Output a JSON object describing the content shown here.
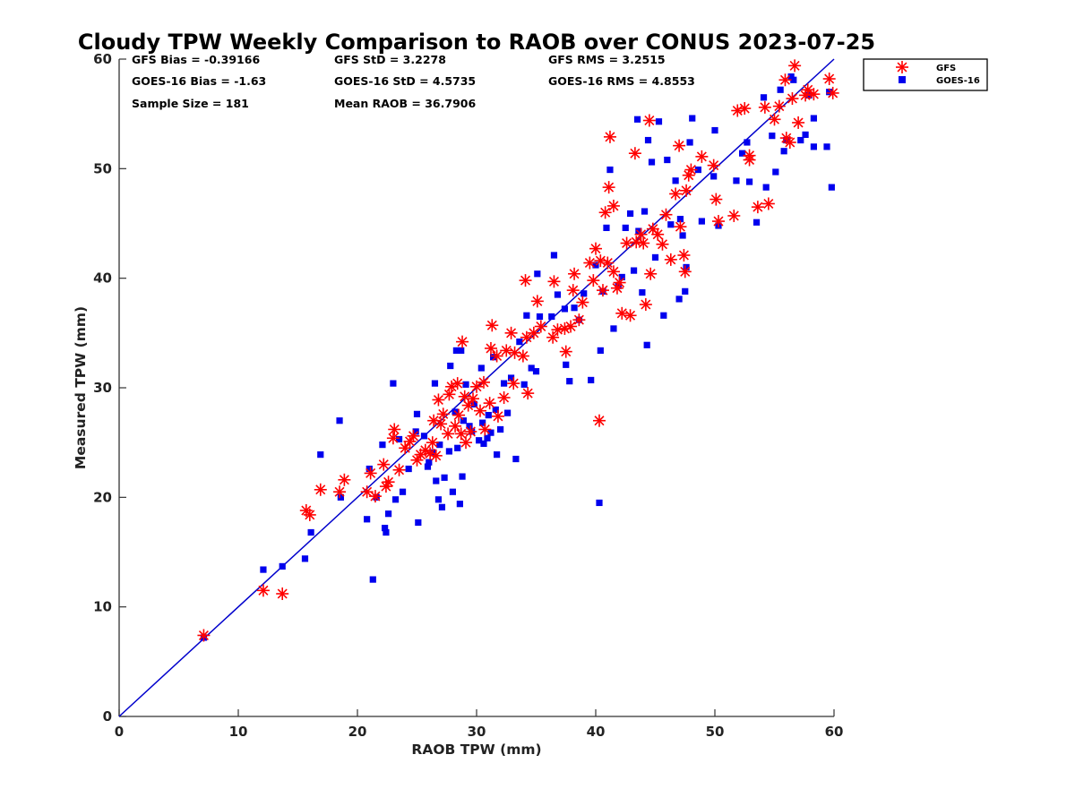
{
  "chart_data": {
    "type": "scatter",
    "title": "Cloudy TPW Weekly Comparison to RAOB over CONUS 2023-07-25",
    "xlabel": "RAOB TPW (mm)",
    "ylabel": "Measured TPW (mm)",
    "xlim": [
      0,
      60
    ],
    "ylim": [
      0,
      60
    ],
    "xticks": [
      0,
      10,
      20,
      30,
      40,
      50,
      60
    ],
    "yticks": [
      0,
      10,
      20,
      30,
      40,
      50,
      60
    ],
    "grid": false,
    "legend_position": "outside top-right",
    "reference_line": {
      "name": "1:1 line",
      "from": [
        0,
        0
      ],
      "to": [
        60,
        60
      ],
      "color": "#0000cc"
    },
    "stats": [
      [
        "GFS Bias = -0.39166",
        "GFS StD = 3.2278",
        "GFS RMS = 3.2515"
      ],
      [
        "GOES-16 Bias = -1.63",
        "GOES-16 StD = 4.5735",
        "GOES-16 RMS = 4.8553"
      ],
      [
        "Sample Size = 181",
        "Mean RAOB = 36.7906",
        ""
      ]
    ],
    "series": [
      {
        "name": "GFS",
        "marker": "asterisk",
        "color": "#ff0000",
        "points": [
          [
            7.1,
            7.4
          ],
          [
            12.1,
            11.5
          ],
          [
            13.7,
            11.2
          ],
          [
            15.7,
            18.8
          ],
          [
            16.0,
            18.4
          ],
          [
            16.9,
            20.7
          ],
          [
            18.5,
            20.5
          ],
          [
            18.9,
            21.6
          ],
          [
            20.8,
            20.5
          ],
          [
            21.1,
            22.2
          ],
          [
            21.5,
            20.1
          ],
          [
            22.2,
            23.0
          ],
          [
            22.4,
            21.0
          ],
          [
            22.6,
            21.4
          ],
          [
            23.0,
            25.4
          ],
          [
            23.1,
            26.2
          ],
          [
            23.5,
            22.5
          ],
          [
            24.0,
            24.5
          ],
          [
            24.4,
            25.1
          ],
          [
            24.7,
            25.6
          ],
          [
            25.0,
            23.4
          ],
          [
            25.3,
            23.9
          ],
          [
            25.7,
            24.3
          ],
          [
            26.1,
            24.0
          ],
          [
            26.3,
            25.0
          ],
          [
            26.4,
            27.0
          ],
          [
            26.6,
            23.8
          ],
          [
            26.8,
            28.9
          ],
          [
            27.0,
            26.7
          ],
          [
            27.2,
            27.6
          ],
          [
            27.6,
            25.8
          ],
          [
            27.7,
            29.4
          ],
          [
            27.9,
            30.1
          ],
          [
            28.2,
            26.5
          ],
          [
            28.4,
            30.4
          ],
          [
            28.5,
            27.5
          ],
          [
            28.7,
            25.8
          ],
          [
            28.8,
            34.2
          ],
          [
            29.0,
            29.2
          ],
          [
            29.1,
            25.0
          ],
          [
            29.3,
            28.4
          ],
          [
            29.5,
            26.0
          ],
          [
            29.7,
            29.0
          ],
          [
            30.0,
            30.1
          ],
          [
            30.3,
            27.9
          ],
          [
            30.6,
            30.5
          ],
          [
            30.7,
            26.2
          ],
          [
            31.1,
            28.6
          ],
          [
            31.2,
            33.6
          ],
          [
            31.3,
            35.7
          ],
          [
            31.7,
            32.9
          ],
          [
            31.8,
            27.4
          ],
          [
            32.3,
            29.1
          ],
          [
            32.5,
            33.4
          ],
          [
            32.9,
            35.0
          ],
          [
            33.1,
            30.4
          ],
          [
            33.2,
            33.2
          ],
          [
            33.9,
            32.9
          ],
          [
            34.2,
            34.6
          ],
          [
            34.3,
            29.5
          ],
          [
            34.1,
            39.8
          ],
          [
            34.8,
            35.0
          ],
          [
            35.1,
            37.9
          ],
          [
            35.4,
            35.6
          ],
          [
            36.4,
            34.6
          ],
          [
            36.5,
            39.7
          ],
          [
            36.8,
            35.3
          ],
          [
            37.4,
            35.4
          ],
          [
            37.5,
            33.3
          ],
          [
            37.9,
            35.6
          ],
          [
            38.1,
            38.9
          ],
          [
            38.2,
            40.4
          ],
          [
            38.6,
            36.2
          ],
          [
            38.9,
            37.8
          ],
          [
            39.5,
            41.4
          ],
          [
            39.8,
            39.8
          ],
          [
            40.0,
            42.7
          ],
          [
            40.3,
            27.0
          ],
          [
            40.4,
            41.6
          ],
          [
            40.6,
            38.9
          ],
          [
            40.8,
            46.0
          ],
          [
            41.0,
            41.4
          ],
          [
            41.1,
            48.3
          ],
          [
            41.2,
            52.9
          ],
          [
            41.5,
            46.6
          ],
          [
            41.5,
            40.6
          ],
          [
            41.8,
            39.1
          ],
          [
            42.0,
            39.6
          ],
          [
            42.2,
            36.8
          ],
          [
            42.6,
            43.2
          ],
          [
            42.9,
            36.6
          ],
          [
            43.3,
            51.4
          ],
          [
            43.4,
            43.3
          ],
          [
            43.8,
            44.0
          ],
          [
            44.0,
            43.2
          ],
          [
            44.2,
            37.6
          ],
          [
            44.5,
            54.4
          ],
          [
            44.6,
            40.4
          ],
          [
            44.8,
            44.5
          ],
          [
            45.2,
            44.0
          ],
          [
            45.6,
            43.1
          ],
          [
            45.9,
            45.8
          ],
          [
            46.3,
            41.7
          ],
          [
            46.7,
            47.7
          ],
          [
            47.0,
            52.1
          ],
          [
            47.1,
            44.7
          ],
          [
            47.4,
            42.1
          ],
          [
            47.5,
            40.6
          ],
          [
            47.6,
            48.0
          ],
          [
            47.8,
            49.4
          ],
          [
            48.0,
            49.9
          ],
          [
            48.9,
            51.1
          ],
          [
            49.9,
            50.3
          ],
          [
            50.1,
            47.2
          ],
          [
            50.3,
            45.2
          ],
          [
            51.6,
            45.7
          ],
          [
            51.9,
            55.3
          ],
          [
            52.5,
            55.5
          ],
          [
            52.9,
            51.2
          ],
          [
            52.9,
            50.8
          ],
          [
            53.6,
            46.5
          ],
          [
            54.2,
            55.6
          ],
          [
            54.5,
            46.8
          ],
          [
            55.0,
            54.5
          ],
          [
            55.4,
            55.7
          ],
          [
            55.9,
            58.1
          ],
          [
            56.0,
            52.8
          ],
          [
            56.3,
            52.4
          ],
          [
            56.5,
            56.4
          ],
          [
            56.7,
            59.4
          ],
          [
            57.0,
            54.2
          ],
          [
            57.6,
            56.7
          ],
          [
            57.8,
            57.2
          ],
          [
            58.3,
            56.8
          ],
          [
            59.6,
            58.2
          ],
          [
            59.9,
            56.9
          ]
        ]
      },
      {
        "name": "GOES-16",
        "marker": "square",
        "color": "#0000ee",
        "points": [
          [
            7.1,
            7.2
          ],
          [
            12.1,
            13.4
          ],
          [
            13.7,
            13.7
          ],
          [
            15.6,
            14.4
          ],
          [
            16.1,
            16.8
          ],
          [
            16.9,
            23.9
          ],
          [
            18.5,
            27.0
          ],
          [
            18.6,
            20.0
          ],
          [
            20.8,
            18.0
          ],
          [
            21.0,
            22.6
          ],
          [
            21.3,
            12.5
          ],
          [
            21.6,
            20.0
          ],
          [
            22.1,
            24.8
          ],
          [
            22.3,
            17.2
          ],
          [
            22.4,
            16.8
          ],
          [
            22.6,
            18.5
          ],
          [
            23.0,
            30.4
          ],
          [
            23.2,
            19.8
          ],
          [
            23.5,
            25.3
          ],
          [
            23.8,
            20.5
          ],
          [
            24.3,
            22.6
          ],
          [
            24.9,
            26.0
          ],
          [
            25.0,
            27.6
          ],
          [
            25.1,
            17.7
          ],
          [
            25.6,
            25.6
          ],
          [
            25.9,
            22.8
          ],
          [
            26.0,
            23.2
          ],
          [
            26.3,
            24.1
          ],
          [
            26.5,
            30.4
          ],
          [
            26.6,
            21.5
          ],
          [
            26.8,
            19.8
          ],
          [
            26.9,
            24.8
          ],
          [
            27.1,
            19.1
          ],
          [
            27.3,
            21.8
          ],
          [
            27.7,
            24.2
          ],
          [
            27.8,
            32.0
          ],
          [
            28.0,
            20.5
          ],
          [
            28.2,
            27.8
          ],
          [
            28.3,
            33.4
          ],
          [
            28.4,
            24.5
          ],
          [
            28.6,
            19.4
          ],
          [
            28.7,
            33.4
          ],
          [
            28.8,
            21.9
          ],
          [
            28.9,
            27.0
          ],
          [
            29.1,
            30.3
          ],
          [
            29.4,
            26.5
          ],
          [
            29.6,
            26.0
          ],
          [
            29.8,
            28.5
          ],
          [
            30.2,
            25.2
          ],
          [
            30.4,
            31.8
          ],
          [
            30.5,
            26.8
          ],
          [
            30.6,
            24.9
          ],
          [
            30.9,
            25.4
          ],
          [
            31.0,
            27.5
          ],
          [
            31.2,
            25.9
          ],
          [
            31.4,
            32.8
          ],
          [
            31.6,
            28.0
          ],
          [
            31.7,
            23.9
          ],
          [
            32.0,
            26.2
          ],
          [
            32.3,
            30.4
          ],
          [
            32.6,
            27.7
          ],
          [
            32.9,
            30.9
          ],
          [
            33.3,
            23.5
          ],
          [
            33.6,
            34.2
          ],
          [
            34.0,
            30.3
          ],
          [
            34.2,
            36.6
          ],
          [
            34.6,
            31.8
          ],
          [
            35.0,
            31.5
          ],
          [
            35.1,
            40.4
          ],
          [
            35.3,
            36.5
          ],
          [
            36.3,
            36.5
          ],
          [
            36.5,
            42.1
          ],
          [
            36.8,
            38.5
          ],
          [
            37.4,
            37.2
          ],
          [
            37.5,
            32.1
          ],
          [
            37.8,
            30.6
          ],
          [
            38.2,
            37.3
          ],
          [
            38.6,
            36.2
          ],
          [
            39.0,
            38.6
          ],
          [
            39.6,
            30.7
          ],
          [
            40.0,
            41.2
          ],
          [
            40.3,
            19.5
          ],
          [
            40.4,
            33.4
          ],
          [
            40.6,
            38.8
          ],
          [
            40.9,
            44.6
          ],
          [
            41.2,
            49.9
          ],
          [
            41.5,
            35.4
          ],
          [
            41.9,
            39.3
          ],
          [
            42.2,
            40.1
          ],
          [
            42.5,
            44.6
          ],
          [
            42.9,
            45.9
          ],
          [
            43.2,
            40.7
          ],
          [
            43.5,
            54.5
          ],
          [
            43.6,
            44.3
          ],
          [
            43.9,
            38.7
          ],
          [
            44.1,
            46.1
          ],
          [
            44.3,
            33.9
          ],
          [
            44.4,
            52.6
          ],
          [
            44.7,
            50.6
          ],
          [
            45.0,
            41.9
          ],
          [
            45.3,
            54.3
          ],
          [
            45.7,
            36.6
          ],
          [
            46.0,
            50.8
          ],
          [
            46.3,
            44.9
          ],
          [
            46.7,
            48.9
          ],
          [
            47.0,
            38.1
          ],
          [
            47.1,
            45.4
          ],
          [
            47.3,
            43.9
          ],
          [
            47.5,
            38.8
          ],
          [
            47.6,
            41.0
          ],
          [
            47.9,
            52.4
          ],
          [
            48.1,
            54.6
          ],
          [
            48.6,
            49.9
          ],
          [
            48.9,
            45.2
          ],
          [
            49.9,
            49.3
          ],
          [
            50.0,
            53.5
          ],
          [
            50.3,
            44.8
          ],
          [
            51.8,
            48.9
          ],
          [
            52.3,
            51.4
          ],
          [
            52.7,
            52.4
          ],
          [
            52.9,
            48.8
          ],
          [
            53.5,
            45.1
          ],
          [
            54.1,
            56.5
          ],
          [
            54.3,
            48.3
          ],
          [
            54.8,
            53.0
          ],
          [
            55.1,
            49.7
          ],
          [
            55.5,
            57.2
          ],
          [
            55.8,
            51.6
          ],
          [
            56.0,
            52.6
          ],
          [
            56.4,
            58.4
          ],
          [
            56.6,
            58.1
          ],
          [
            57.2,
            52.6
          ],
          [
            57.6,
            53.1
          ],
          [
            57.9,
            56.7
          ],
          [
            58.3,
            52.0
          ],
          [
            58.3,
            54.6
          ],
          [
            59.4,
            52.0
          ],
          [
            59.6,
            57.0
          ],
          [
            59.8,
            48.3
          ]
        ]
      }
    ]
  }
}
